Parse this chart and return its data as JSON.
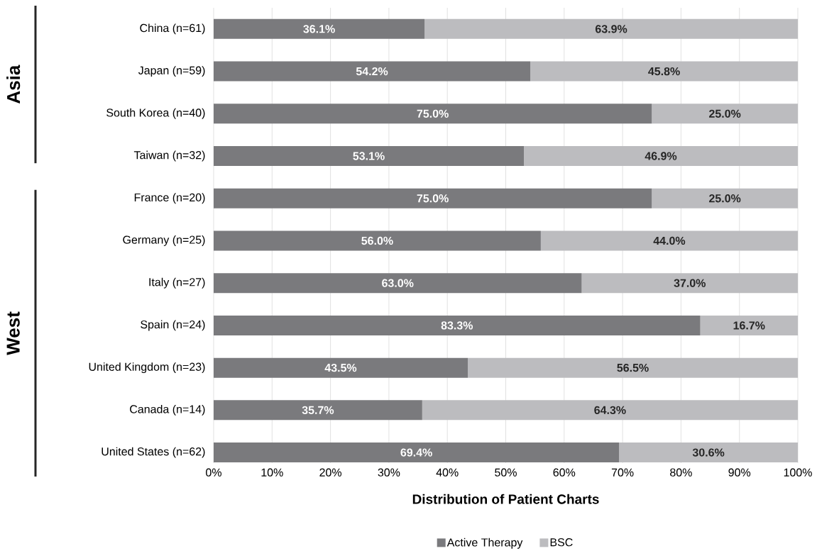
{
  "chart_data": {
    "type": "bar",
    "orientation": "horizontal",
    "stacked": true,
    "xlabel": "Distribution of Patient Charts",
    "categories": [
      "China (n=61)",
      "Japan (n=59)",
      "South Korea (n=40)",
      "Taiwan (n=32)",
      "France (n=20)",
      "Germany (n=25)",
      "Italy (n=27)",
      "Spain (n=24)",
      "United Kingdom (n=23)",
      "Canada (n=14)",
      "United States (n=62)"
    ],
    "series": [
      {
        "name": "Active Therapy",
        "color": "#7a7a7d",
        "values": [
          36.1,
          54.2,
          75.0,
          53.1,
          75.0,
          56.0,
          63.0,
          83.3,
          43.5,
          35.7,
          69.4
        ],
        "value_labels": [
          "36.1%",
          "54.2%",
          "75.0%",
          "53.1%",
          "75.0%",
          "56.0%",
          "63.0%",
          "83.3%",
          "43.5%",
          "35.7%",
          "69.4%"
        ]
      },
      {
        "name": "BSC",
        "color": "#bcbcbf",
        "values": [
          63.9,
          45.8,
          25.0,
          46.9,
          25.0,
          44.0,
          37.0,
          16.7,
          56.5,
          64.3,
          30.6
        ],
        "value_labels": [
          "63.9%",
          "45.8%",
          "25.0%",
          "46.9%",
          "25.0%",
          "44.0%",
          "37.0%",
          "16.7%",
          "56.5%",
          "64.3%",
          "30.6%"
        ]
      }
    ],
    "xlim": [
      0,
      100
    ],
    "xticks": [
      {
        "value": 0,
        "label": "0%"
      },
      {
        "value": 10,
        "label": "10%"
      },
      {
        "value": 20,
        "label": "20%"
      },
      {
        "value": 30,
        "label": "30%"
      },
      {
        "value": 40,
        "label": "40%"
      },
      {
        "value": 50,
        "label": "50%"
      },
      {
        "value": 60,
        "label": "60%"
      },
      {
        "value": 70,
        "label": "70%"
      },
      {
        "value": 80,
        "label": "80%"
      },
      {
        "value": 90,
        "label": "90%"
      },
      {
        "value": 100,
        "label": "100%"
      }
    ],
    "grid": "x",
    "legend": "bottom",
    "annotations": [
      "Asia",
      "West"
    ]
  }
}
